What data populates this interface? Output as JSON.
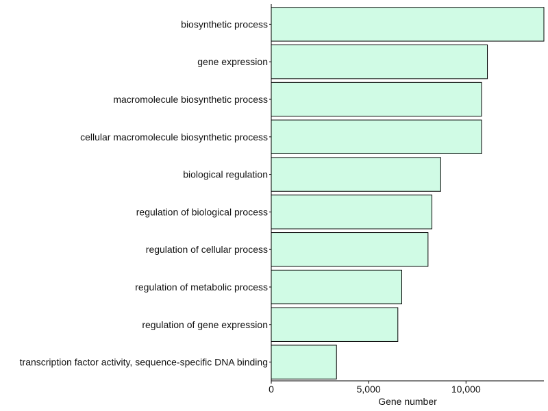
{
  "chart_data": {
    "type": "bar",
    "orientation": "horizontal",
    "categories": [
      "biosynthetic process",
      "gene expression",
      "macromolecule biosynthetic process",
      "cellular macromolecule biosynthetic process",
      "biological regulation",
      "regulation of biological process",
      "regulation of cellular process",
      "regulation of metabolic process",
      "regulation of gene expression",
      "transcription factor activity, sequence-specific DNA binding"
    ],
    "values": [
      14000,
      11100,
      10800,
      10800,
      8700,
      8250,
      8050,
      6700,
      6500,
      3350
    ],
    "xlabel": "Gene number",
    "ylabel": "",
    "xlim": [
      0,
      14000
    ],
    "xticks": [
      0,
      5000,
      10000
    ],
    "xtick_labels": [
      "0",
      "5,000",
      "10,000"
    ],
    "bar_color": "#d0fbe5",
    "bar_edge_color": "#000000",
    "grid": false,
    "legend": "none"
  }
}
